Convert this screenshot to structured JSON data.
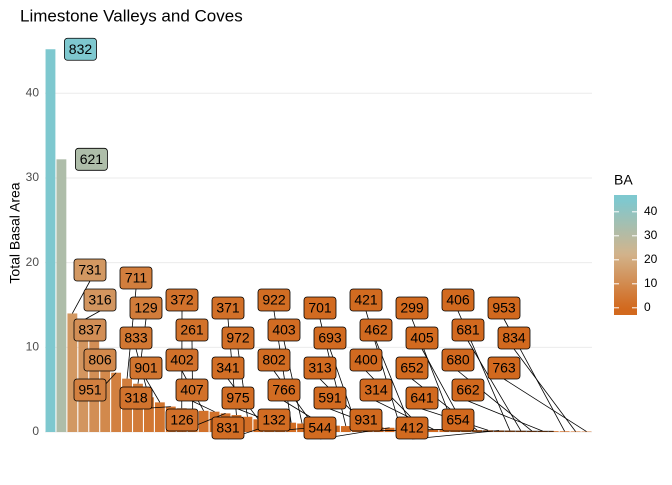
{
  "chart_data": {
    "type": "bar",
    "title": "Limestone Valleys and Coves",
    "y_label": "Total Basal Area",
    "categories": [
      "832",
      "621",
      "731",
      "316",
      "837",
      "806",
      "951",
      "711",
      "129",
      "833",
      "901",
      "318",
      "372",
      "261",
      "402",
      "407",
      "126",
      "371",
      "972",
      "341",
      "975",
      "831",
      "922",
      "403",
      "802",
      "766",
      "132",
      "701",
      "693",
      "313",
      "591",
      "544",
      "421",
      "462",
      "400",
      "314",
      "931",
      "299",
      "405",
      "652",
      "641",
      "412",
      "406",
      "681",
      "680",
      "662",
      "654",
      "953",
      "834",
      "763"
    ],
    "values": [
      45.2,
      32.2,
      14,
      13.2,
      11.2,
      9.5,
      7,
      6.3,
      5.7,
      4.1,
      3.5,
      3,
      2.8,
      2.6,
      2.5,
      2.4,
      2.2,
      2,
      1.8,
      1.5,
      1.3,
      1.2,
      1.1,
      1,
      0.9,
      0.8,
      0.75,
      0.7,
      0.65,
      0.6,
      0.55,
      0.5,
      0.45,
      0.4,
      0.36,
      0.32,
      0.3,
      0.27,
      0.24,
      0.22,
      0.2,
      0.18,
      0.16,
      0.14,
      0.12,
      0.1,
      0.09,
      0.08,
      0.06,
      0.05
    ],
    "ylim": [
      0,
      47
    ],
    "yticks": [
      0,
      10,
      20,
      30,
      40
    ],
    "grid": true,
    "legend": {
      "title": "BA",
      "lim": [
        -3,
        47
      ],
      "ticks": [
        0,
        10,
        20,
        30,
        40
      ],
      "colors": [
        "#d2691e",
        "#d2b48c",
        "#7ec8cf"
      ],
      "color_range": [
        0,
        45
      ]
    }
  }
}
